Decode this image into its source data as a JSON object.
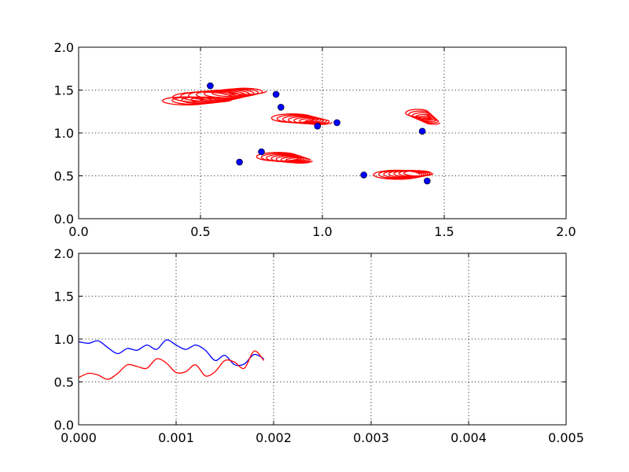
{
  "chart_data": [
    {
      "type": "scatter",
      "title": "",
      "xlabel": "",
      "ylabel": "",
      "xlim": [
        0,
        2
      ],
      "ylim": [
        0,
        2
      ],
      "xticks": [
        "0.0",
        "0.5",
        "1.0",
        "1.5",
        "2.0"
      ],
      "yticks": [
        "0.0",
        "0.5",
        "1.0",
        "1.5",
        "2.0"
      ],
      "grid": true,
      "colors": {
        "points": "#0000ff",
        "trails": "#ff0000"
      },
      "points": [
        {
          "x": 0.54,
          "y": 1.55
        },
        {
          "x": 0.81,
          "y": 1.45
        },
        {
          "x": 0.83,
          "y": 1.3
        },
        {
          "x": 1.06,
          "y": 1.12
        },
        {
          "x": 0.98,
          "y": 1.08
        },
        {
          "x": 1.41,
          "y": 1.02
        },
        {
          "x": 0.75,
          "y": 0.78
        },
        {
          "x": 0.66,
          "y": 0.66
        },
        {
          "x": 1.17,
          "y": 0.51
        },
        {
          "x": 1.43,
          "y": 0.44
        }
      ],
      "trails": [
        {
          "cx": 0.6,
          "cy": 1.45,
          "rx": 0.13,
          "ry": 0.065,
          "n": 8,
          "drift": [
            0.2,
            0.08
          ]
        },
        {
          "cx": 0.5,
          "cy": 1.38,
          "rx": 0.1,
          "ry": 0.05,
          "n": 5,
          "drift": [
            0.15,
            0.02
          ]
        },
        {
          "cx": 0.93,
          "cy": 1.15,
          "rx": 0.09,
          "ry": 0.05,
          "n": 7,
          "drift": [
            0.12,
            -0.05
          ]
        },
        {
          "cx": 1.42,
          "cy": 1.18,
          "rx": 0.05,
          "ry": 0.04,
          "n": 7,
          "drift": [
            0.07,
            -0.12
          ]
        },
        {
          "cx": 0.86,
          "cy": 0.7,
          "rx": 0.09,
          "ry": 0.05,
          "n": 7,
          "drift": [
            0.1,
            -0.05
          ]
        },
        {
          "cx": 1.35,
          "cy": 0.52,
          "rx": 0.1,
          "ry": 0.055,
          "n": 7,
          "drift": [
            0.1,
            0.02
          ]
        }
      ]
    },
    {
      "type": "line",
      "title": "",
      "xlabel": "",
      "ylabel": "",
      "xlim": [
        0,
        0.005
      ],
      "ylim": [
        0,
        2
      ],
      "xticks": [
        "0.000",
        "0.001",
        "0.002",
        "0.003",
        "0.004",
        "0.005"
      ],
      "yticks": [
        "0.0",
        "0.5",
        "1.0",
        "1.5",
        "2.0"
      ],
      "grid": true,
      "series": [
        {
          "color": "#0000ff",
          "points": [
            [
              0.0,
              0.97
            ],
            [
              0.0001,
              0.95
            ],
            [
              0.0002,
              0.98
            ],
            [
              0.0003,
              0.9
            ],
            [
              0.0004,
              0.83
            ],
            [
              0.0005,
              0.89
            ],
            [
              0.0006,
              0.87
            ],
            [
              0.0007,
              0.93
            ],
            [
              0.0008,
              0.88
            ],
            [
              0.0009,
              0.99
            ],
            [
              0.001,
              0.93
            ],
            [
              0.0011,
              0.88
            ],
            [
              0.0012,
              0.93
            ],
            [
              0.0013,
              0.87
            ],
            [
              0.0014,
              0.75
            ],
            [
              0.0015,
              0.81
            ],
            [
              0.0016,
              0.7
            ],
            [
              0.0017,
              0.71
            ],
            [
              0.0018,
              0.82
            ],
            [
              0.0019,
              0.77
            ]
          ]
        },
        {
          "color": "#ff0000",
          "points": [
            [
              0.0,
              0.55
            ],
            [
              0.0001,
              0.6
            ],
            [
              0.0002,
              0.58
            ],
            [
              0.0003,
              0.53
            ],
            [
              0.0004,
              0.6
            ],
            [
              0.0005,
              0.7
            ],
            [
              0.0006,
              0.68
            ],
            [
              0.0007,
              0.66
            ],
            [
              0.0008,
              0.77
            ],
            [
              0.0009,
              0.72
            ],
            [
              0.001,
              0.61
            ],
            [
              0.0011,
              0.62
            ],
            [
              0.0012,
              0.7
            ],
            [
              0.0013,
              0.57
            ],
            [
              0.0014,
              0.62
            ],
            [
              0.0015,
              0.75
            ],
            [
              0.0016,
              0.73
            ],
            [
              0.0017,
              0.66
            ],
            [
              0.0018,
              0.86
            ],
            [
              0.0019,
              0.75
            ]
          ]
        }
      ]
    }
  ]
}
